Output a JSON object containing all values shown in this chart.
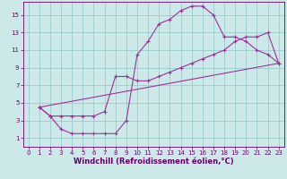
{
  "xlabel": "Windchill (Refroidissement éolien,°C)",
  "bg_color": "#cce8e8",
  "line_color": "#993399",
  "grid_color": "#99cccc",
  "xlim": [
    -0.5,
    23.5
  ],
  "ylim": [
    0,
    16.5
  ],
  "xticks": [
    0,
    1,
    2,
    3,
    4,
    5,
    6,
    7,
    8,
    9,
    10,
    11,
    12,
    13,
    14,
    15,
    16,
    17,
    18,
    19,
    20,
    21,
    22,
    23
  ],
  "yticks": [
    1,
    3,
    5,
    7,
    9,
    11,
    13,
    15
  ],
  "line1_x": [
    1,
    2,
    3,
    4,
    5,
    6,
    7,
    8,
    9,
    10,
    11,
    12,
    13,
    14,
    15,
    16,
    17,
    18,
    19,
    20,
    21,
    22,
    23
  ],
  "line1_y": [
    4.5,
    3.5,
    2.0,
    1.5,
    1.5,
    1.5,
    1.5,
    1.5,
    3.0,
    10.5,
    12.0,
    14.0,
    14.5,
    15.5,
    16.0,
    16.0,
    15.0,
    12.5,
    12.5,
    12.0,
    11.0,
    10.5,
    9.5
  ],
  "line2_x": [
    1,
    2,
    3,
    4,
    5,
    6,
    7,
    8,
    9,
    10,
    11,
    12,
    13,
    14,
    15,
    16,
    17,
    18,
    19,
    20,
    21,
    22,
    23
  ],
  "line2_y": [
    4.5,
    3.5,
    3.5,
    3.5,
    3.5,
    3.5,
    4.0,
    8.0,
    8.0,
    7.5,
    7.5,
    8.0,
    8.5,
    9.0,
    9.5,
    10.0,
    10.5,
    11.0,
    12.0,
    12.5,
    12.5,
    13.0,
    9.5
  ],
  "line3_x": [
    1,
    23
  ],
  "line3_y": [
    4.5,
    9.5
  ],
  "font_color": "#660066",
  "tick_fontsize": 5,
  "label_fontsize": 6
}
